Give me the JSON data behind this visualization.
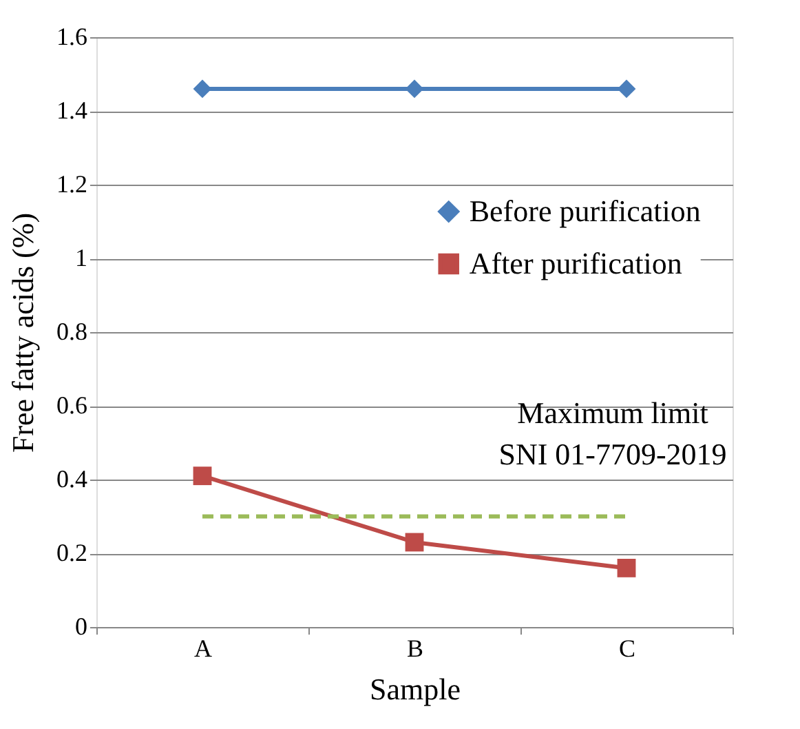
{
  "chart_data": {
    "type": "line",
    "xlabel": "Sample",
    "ylabel": "Free fatty acids (%)",
    "categories": [
      "A",
      "B",
      "C"
    ],
    "series": [
      {
        "name": "Before purification",
        "color": "#4a7ebb",
        "marker": "diamond",
        "values": [
          1.46,
          1.46,
          1.46
        ]
      },
      {
        "name": "After purification",
        "color": "#be4b48",
        "marker": "square",
        "values": [
          0.41,
          0.23,
          0.16
        ]
      }
    ],
    "ref_lines": [
      {
        "axis": "y",
        "value": 0.3,
        "label": "Maximum limit\nSNI 01-7709-2019",
        "color": "#9bbb59",
        "line_style": "dashed"
      }
    ],
    "ylim": [
      0,
      1.6
    ],
    "yticks": [
      0,
      0.2,
      0.4,
      0.6,
      0.8,
      1,
      1.2,
      1.4,
      1.6
    ],
    "grid": "y",
    "legend": "right",
    "line_style": "solid"
  }
}
